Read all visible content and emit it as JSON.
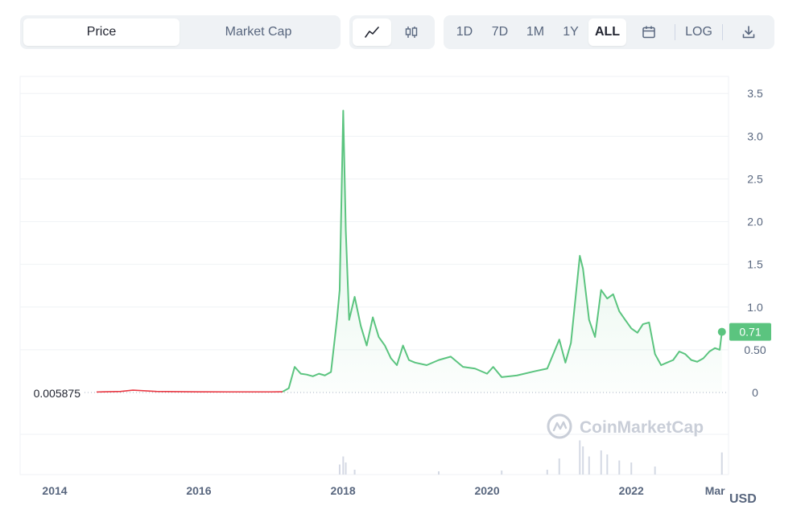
{
  "tabs": [
    {
      "label": "Price",
      "active": true
    },
    {
      "label": "Market Cap",
      "active": false
    }
  ],
  "chart_types": [
    {
      "icon": "line-chart-icon",
      "active": true
    },
    {
      "icon": "candlestick-icon",
      "active": false
    }
  ],
  "ranges": [
    {
      "label": "1D",
      "active": false
    },
    {
      "label": "7D",
      "active": false
    },
    {
      "label": "1M",
      "active": false
    },
    {
      "label": "1Y",
      "active": false
    },
    {
      "label": "ALL",
      "active": true
    }
  ],
  "calendar_icon": "calendar-icon",
  "log_label": "LOG",
  "download_icon": "download-icon",
  "currency_label": "USD",
  "colors": {
    "up": "#16c784",
    "down": "#ea3943",
    "line": "#5bc47f",
    "volume": "#d4d9e4",
    "grid": "#eff2f5",
    "text_secondary": "#58667e",
    "watermark": "#c9ced8"
  },
  "chart_data": {
    "type": "area",
    "title": "",
    "xlabel": "",
    "ylabel": "",
    "ylim": [
      0,
      3.7
    ],
    "xlim": [
      "2014-06-01",
      "2023-04-06"
    ],
    "x_ticks": [
      "2014",
      "2016",
      "2018",
      "2020",
      "2022",
      "Mar"
    ],
    "x_tick_dates": [
      "2014-01-01",
      "2016-01-01",
      "2018-01-01",
      "2020-01-01",
      "2022-01-01",
      "2023-03-01"
    ],
    "y_ticks": [
      "0",
      "0.50",
      "1.0",
      "1.5",
      "2.0",
      "2.5",
      "3.0",
      "3.5"
    ],
    "y_tick_values": [
      0,
      0.5,
      1.0,
      1.5,
      2.0,
      2.5,
      3.0,
      3.5
    ],
    "start_price_label": "0.005875",
    "start_price": 0.005875,
    "current_price_label": "0.71",
    "current_price": 0.71,
    "watermark": "CoinMarketCap",
    "grid": true,
    "series": [
      {
        "values": [
          [
            "2014-08-01",
            0.006
          ],
          [
            "2014-12-01",
            0.012
          ],
          [
            "2015-02-01",
            0.028
          ],
          [
            "2015-06-01",
            0.012
          ],
          [
            "2016-01-01",
            0.008
          ],
          [
            "2016-06-01",
            0.007
          ],
          [
            "2017-01-01",
            0.007
          ],
          [
            "2017-03-01",
            0.009
          ],
          [
            "2017-04-01",
            0.05
          ],
          [
            "2017-05-01",
            0.3
          ],
          [
            "2017-06-01",
            0.22
          ],
          [
            "2017-07-01",
            0.21
          ],
          [
            "2017-08-01",
            0.19
          ],
          [
            "2017-09-01",
            0.22
          ],
          [
            "2017-10-01",
            0.2
          ],
          [
            "2017-11-01",
            0.24
          ],
          [
            "2017-12-01",
            0.85
          ],
          [
            "2017-12-15",
            1.2
          ],
          [
            "2018-01-02",
            3.3
          ],
          [
            "2018-01-15",
            1.9
          ],
          [
            "2018-02-01",
            0.85
          ],
          [
            "2018-03-01",
            1.12
          ],
          [
            "2018-04-01",
            0.78
          ],
          [
            "2018-05-01",
            0.55
          ],
          [
            "2018-06-01",
            0.88
          ],
          [
            "2018-07-01",
            0.65
          ],
          [
            "2018-08-01",
            0.55
          ],
          [
            "2018-09-01",
            0.4
          ],
          [
            "2018-10-01",
            0.32
          ],
          [
            "2018-11-01",
            0.55
          ],
          [
            "2018-12-01",
            0.38
          ],
          [
            "2019-01-01",
            0.35
          ],
          [
            "2019-03-01",
            0.32
          ],
          [
            "2019-05-01",
            0.38
          ],
          [
            "2019-07-01",
            0.42
          ],
          [
            "2019-09-01",
            0.3
          ],
          [
            "2019-11-01",
            0.28
          ],
          [
            "2020-01-01",
            0.22
          ],
          [
            "2020-02-01",
            0.3
          ],
          [
            "2020-03-15",
            0.18
          ],
          [
            "2020-06-01",
            0.2
          ],
          [
            "2020-09-01",
            0.25
          ],
          [
            "2020-11-01",
            0.28
          ],
          [
            "2021-01-01",
            0.62
          ],
          [
            "2021-02-01",
            0.35
          ],
          [
            "2021-03-01",
            0.58
          ],
          [
            "2021-04-15",
            1.6
          ],
          [
            "2021-05-01",
            1.45
          ],
          [
            "2021-06-01",
            0.85
          ],
          [
            "2021-07-01",
            0.65
          ],
          [
            "2021-08-01",
            1.2
          ],
          [
            "2021-09-01",
            1.1
          ],
          [
            "2021-10-01",
            1.15
          ],
          [
            "2021-11-01",
            0.95
          ],
          [
            "2021-12-01",
            0.85
          ],
          [
            "2022-01-01",
            0.75
          ],
          [
            "2022-02-01",
            0.7
          ],
          [
            "2022-03-01",
            0.8
          ],
          [
            "2022-04-01",
            0.82
          ],
          [
            "2022-05-01",
            0.45
          ],
          [
            "2022-06-01",
            0.32
          ],
          [
            "2022-07-01",
            0.35
          ],
          [
            "2022-08-01",
            0.38
          ],
          [
            "2022-09-01",
            0.48
          ],
          [
            "2022-10-01",
            0.45
          ],
          [
            "2022-11-01",
            0.38
          ],
          [
            "2022-12-01",
            0.36
          ],
          [
            "2023-01-01",
            0.4
          ],
          [
            "2023-02-01",
            0.48
          ],
          [
            "2023-03-01",
            0.52
          ],
          [
            "2023-03-25",
            0.5
          ],
          [
            "2023-04-05",
            0.71
          ]
        ]
      }
    ],
    "volume_note": "relative volume bars shown along the bottom strip",
    "volume": [
      [
        "2017-12-15",
        0.25
      ],
      [
        "2018-01-02",
        0.45
      ],
      [
        "2018-01-15",
        0.3
      ],
      [
        "2018-03-01",
        0.12
      ],
      [
        "2019-05-01",
        0.08
      ],
      [
        "2020-03-15",
        0.1
      ],
      [
        "2020-11-01",
        0.12
      ],
      [
        "2021-01-01",
        0.4
      ],
      [
        "2021-04-15",
        0.85
      ],
      [
        "2021-05-01",
        0.7
      ],
      [
        "2021-06-01",
        0.45
      ],
      [
        "2021-08-01",
        0.6
      ],
      [
        "2021-09-01",
        0.5
      ],
      [
        "2021-11-01",
        0.35
      ],
      [
        "2022-01-01",
        0.3
      ],
      [
        "2022-05-01",
        0.2
      ],
      [
        "2023-04-05",
        0.55
      ]
    ]
  }
}
